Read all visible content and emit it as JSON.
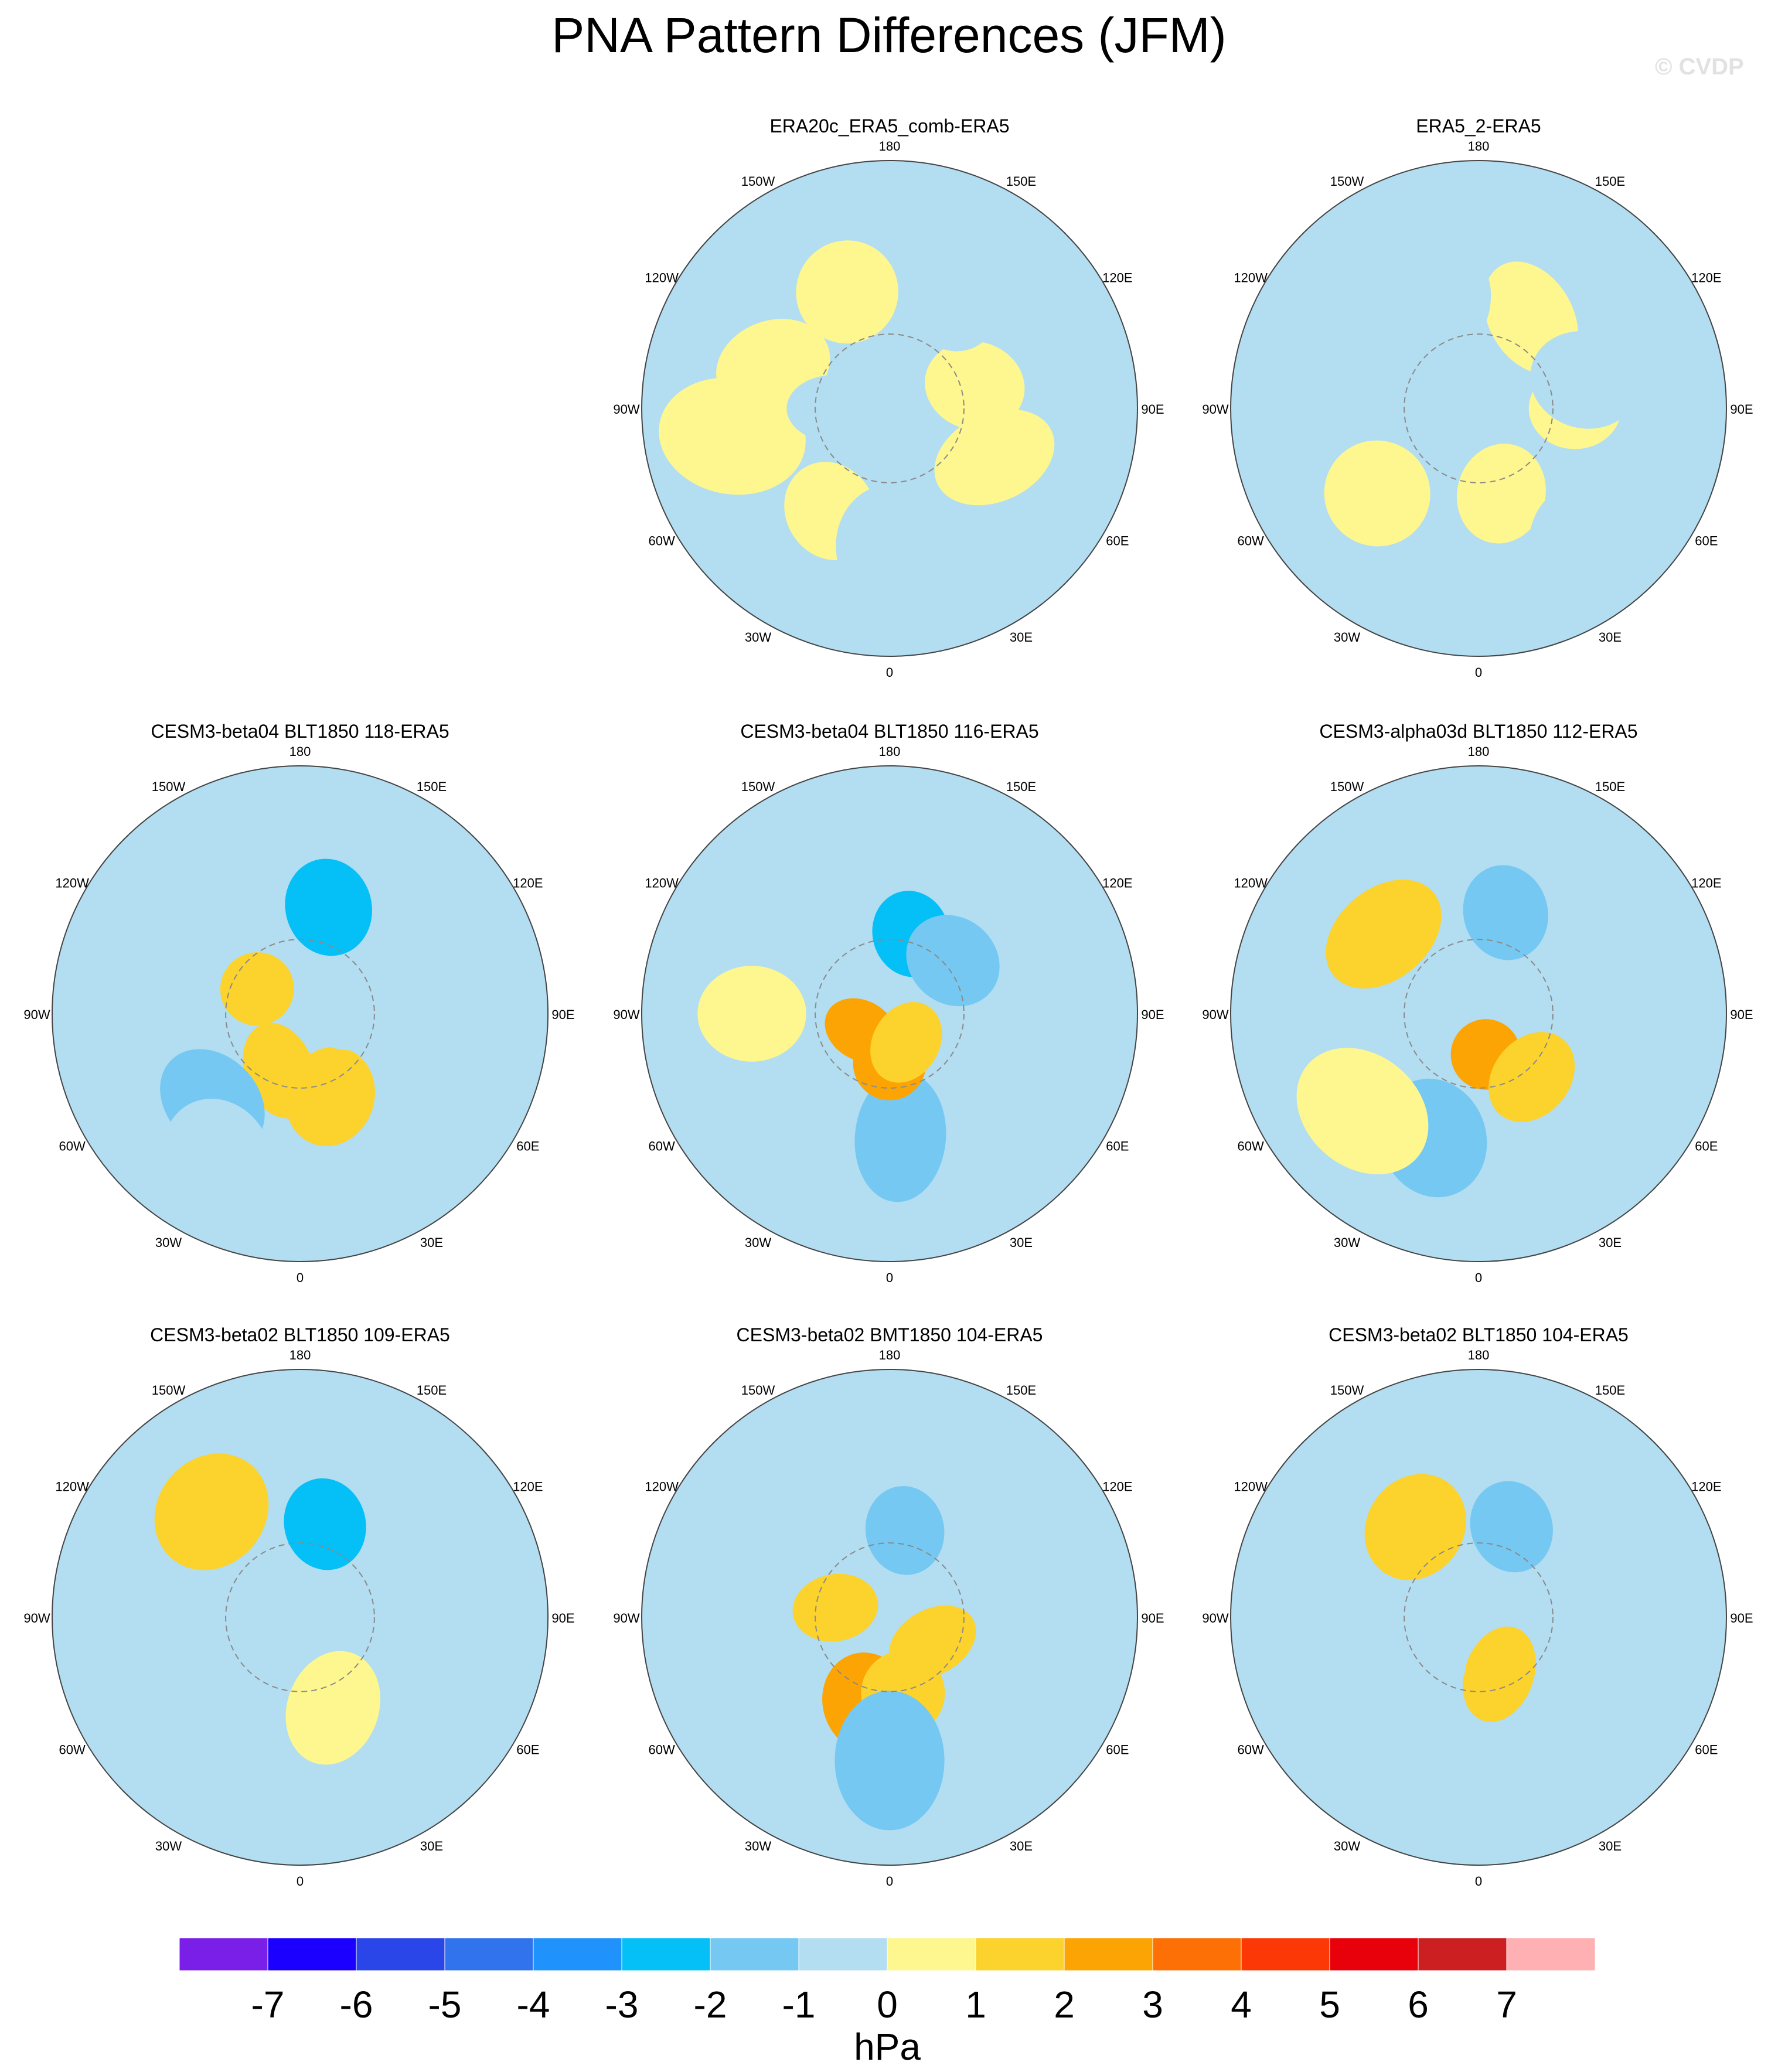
{
  "figure": {
    "title": "PNA Pattern Differences (JFM)",
    "watermark": "© CVDP"
  },
  "colorbar": {
    "unit_label": "hPa",
    "tick_labels": [
      "-7",
      "-6",
      "-5",
      "-4",
      "-3",
      "-2",
      "-1",
      "0",
      "1",
      "2",
      "3",
      "4",
      "5",
      "6",
      "7"
    ],
    "colors": [
      "#7a1fe8",
      "#1c00ff",
      "#2a45e8",
      "#3173ec",
      "#1f92fb",
      "#05bff7",
      "#74c8f2",
      "#b3ddf1",
      "#fef78f",
      "#fcd22c",
      "#fca403",
      "#fd7005",
      "#fc3906",
      "#e8010b",
      "#cc1f22",
      "#feb0b2"
    ]
  },
  "chart_data": {
    "type": "polar contour map",
    "projection": "North polar stereographic",
    "longitude_labels": [
      "180",
      "150E",
      "120E",
      "90E",
      "60E",
      "30E",
      "0",
      "30W",
      "60W",
      "90W",
      "120W",
      "150W"
    ],
    "contour_levels_hPa": [
      -7,
      -6,
      -5,
      -4,
      -3,
      -2,
      -1,
      0,
      1,
      2,
      3,
      4,
      5,
      6,
      7
    ],
    "panels": [
      {
        "title": "ERA20c_ERA5_comb-ERA5",
        "features": [
          {
            "lon": 330,
            "lat": 47,
            "level": "0 to 1"
          },
          {
            "lon": 105,
            "lat": 58,
            "level": "0 to 1"
          },
          {
            "lon": 65,
            "lat": 48,
            "level": "0 to 1"
          },
          {
            "lon": 200,
            "lat": 45,
            "level": "0 to 1"
          },
          {
            "lon": 250,
            "lat": 45,
            "level": "0 to 1"
          },
          {
            "lon": 280,
            "lat": 32,
            "level": "0 to 1"
          },
          {
            "lon": 150,
            "lat": 45,
            "level": "-1 to 0"
          },
          {
            "lon": 0,
            "lat": 40,
            "level": "-1 to 0"
          },
          {
            "lon": 270,
            "lat": 70,
            "level": "-1 to 0"
          }
        ]
      },
      {
        "title": "ERA5_2-ERA5",
        "features": [
          {
            "lon": 90,
            "lat": 55,
            "level": "0 to 1"
          },
          {
            "lon": 15,
            "lat": 58,
            "level": "0 to 1"
          },
          {
            "lon": 150,
            "lat": 52,
            "level": "0 to 1"
          },
          {
            "lon": 310,
            "lat": 42,
            "level": "0 to 1"
          },
          {
            "lon": 240,
            "lat": 55,
            "level": "-1 to 0"
          },
          {
            "lon": 200,
            "lat": 50,
            "level": "-1 to 0"
          },
          {
            "lon": 40,
            "lat": 30,
            "level": "-1 to 0"
          },
          {
            "lon": 105,
            "lat": 50,
            "level": "-1 to 0"
          }
        ]
      },
      {
        "title": "CESM3-beta04 BLT1850 118-ERA5",
        "features": [
          {
            "lon": 165,
            "lat": 50,
            "level": "-3 to -2"
          },
          {
            "lon": 20,
            "lat": 58,
            "level": "1 to 2"
          },
          {
            "lon": 340,
            "lat": 68,
            "level": "1 to 2"
          },
          {
            "lon": 240,
            "lat": 72,
            "level": "1 to 2"
          },
          {
            "lon": 315,
            "lat": 45,
            "level": "-2 to -1"
          },
          {
            "lon": 90,
            "lat": 72,
            "level": "-1 to 0"
          },
          {
            "lon": 330,
            "lat": 30,
            "level": "-1 to 0"
          }
        ]
      },
      {
        "title": "CESM3-beta04 BLT1850 116-ERA5",
        "features": [
          {
            "lon": 165,
            "lat": 60,
            "level": "-3 to -2"
          },
          {
            "lon": 130,
            "lat": 60,
            "level": "-2 to -1"
          },
          {
            "lon": 5,
            "lat": 45,
            "level": "-2 to -1"
          },
          {
            "lon": 0,
            "lat": 72,
            "level": "2 to 3"
          },
          {
            "lon": 300,
            "lat": 78,
            "level": "2 to 3"
          },
          {
            "lon": 30,
            "lat": 78,
            "level": "1 to 2"
          },
          {
            "lon": 270,
            "lat": 40,
            "level": "0 to 1"
          }
        ]
      },
      {
        "title": "CESM3-alpha03d BLT1850 112-ERA5",
        "features": [
          {
            "lon": 165,
            "lat": 52,
            "level": "-2 to -1"
          },
          {
            "lon": 340,
            "lat": 42,
            "level": "-2 to -1"
          },
          {
            "lon": 230,
            "lat": 45,
            "level": "1 to 2"
          },
          {
            "lon": 10,
            "lat": 75,
            "level": "2 to 3"
          },
          {
            "lon": 40,
            "lat": 60,
            "level": "1 to 2"
          },
          {
            "lon": 310,
            "lat": 35,
            "level": "0 to 1"
          },
          {
            "lon": 90,
            "lat": 40,
            "level": "-1 to 0"
          }
        ]
      },
      {
        "title": "CESM3-beta02 BLT1850 109-ERA5",
        "features": [
          {
            "lon": 165,
            "lat": 55,
            "level": "-3 to -2"
          },
          {
            "lon": 220,
            "lat": 40,
            "level": "1 to 2"
          },
          {
            "lon": 270,
            "lat": 62,
            "level": "-1 to 0"
          },
          {
            "lon": 60,
            "lat": 60,
            "level": "-1 to 0"
          },
          {
            "lon": 330,
            "lat": 28,
            "level": "-1 to 0"
          },
          {
            "lon": 20,
            "lat": 55,
            "level": "0 to 1"
          }
        ]
      },
      {
        "title": "CESM3-beta02 BMT1850 104-ERA5",
        "features": [
          {
            "lon": 170,
            "lat": 58,
            "level": "-2 to -1"
          },
          {
            "lon": 345,
            "lat": 58,
            "level": "2 to 3"
          },
          {
            "lon": 60,
            "lat": 72,
            "level": "1 to 2"
          },
          {
            "lon": 10,
            "lat": 62,
            "level": "1 to 2"
          },
          {
            "lon": 260,
            "lat": 70,
            "level": "1 to 2"
          },
          {
            "lon": 0,
            "lat": 38,
            "level": "-2 to -1"
          }
        ]
      },
      {
        "title": "CESM3-beta02 BLT1850 104-ERA5",
        "features": [
          {
            "lon": 160,
            "lat": 55,
            "level": "-2 to -1"
          },
          {
            "lon": 215,
            "lat": 50,
            "level": "1 to 2"
          },
          {
            "lon": 20,
            "lat": 68,
            "level": "1 to 2"
          },
          {
            "lon": 310,
            "lat": 65,
            "level": "-1 to 0"
          },
          {
            "lon": 340,
            "lat": 25,
            "level": "-1 to 0"
          },
          {
            "lon": 95,
            "lat": 42,
            "level": "-1 to 0"
          }
        ]
      }
    ]
  }
}
